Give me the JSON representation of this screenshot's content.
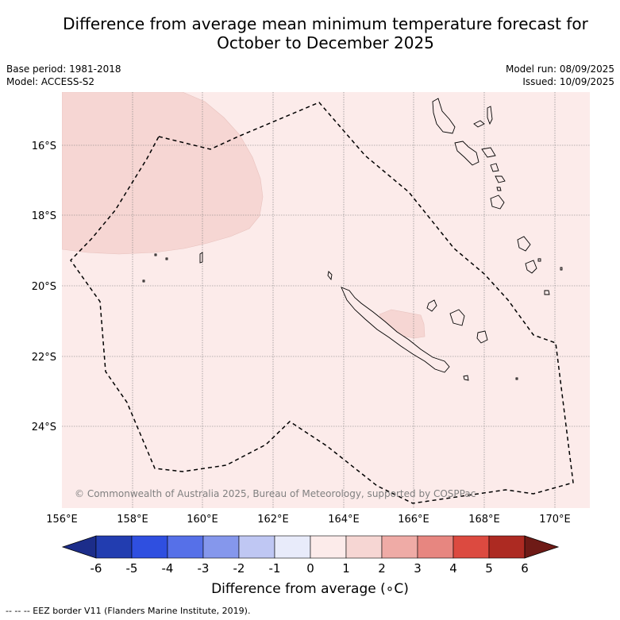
{
  "title": {
    "line1": "Difference from average mean minimum temperature forecast for",
    "line2": "October to December 2025"
  },
  "meta": {
    "base_period": "Base period: 1981-2018",
    "model": "Model: ACCESS-S2",
    "model_run": "Model run: 08/09/2025",
    "issued": "Issued: 10/09/2025"
  },
  "map": {
    "lat_labels": [
      "16°S",
      "18°S",
      "20°S",
      "22°S",
      "24°S"
    ],
    "lon_labels": [
      "156°E",
      "158°E",
      "160°E",
      "162°E",
      "164°E",
      "166°E",
      "168°E",
      "170°E"
    ],
    "background_color": "#fcebea",
    "anomaly_patch_color": "#f6d6d3",
    "copyright": "© Commonwealth of Australia 2025, Bureau of Meteorology, supported by COSPPac"
  },
  "colorbar": {
    "ticks": [
      "-6",
      "-5",
      "-4",
      "-3",
      "-2",
      "-1",
      "0",
      "1",
      "2",
      "3",
      "4",
      "5",
      "6"
    ],
    "colors": [
      "#1c2d8a",
      "#223db0",
      "#2f4fe0",
      "#5670e8",
      "#8597ec",
      "#bfc7f3",
      "#e8ebfa",
      "#fcebea",
      "#f6d6d3",
      "#efaba6",
      "#e78680",
      "#dc4a40",
      "#ad2a22",
      "#6e1a16"
    ],
    "label": "Difference from average (∘C)"
  },
  "footnote": "--  --  -- EEZ border V11 (Flanders Marine Institute, 2019)."
}
